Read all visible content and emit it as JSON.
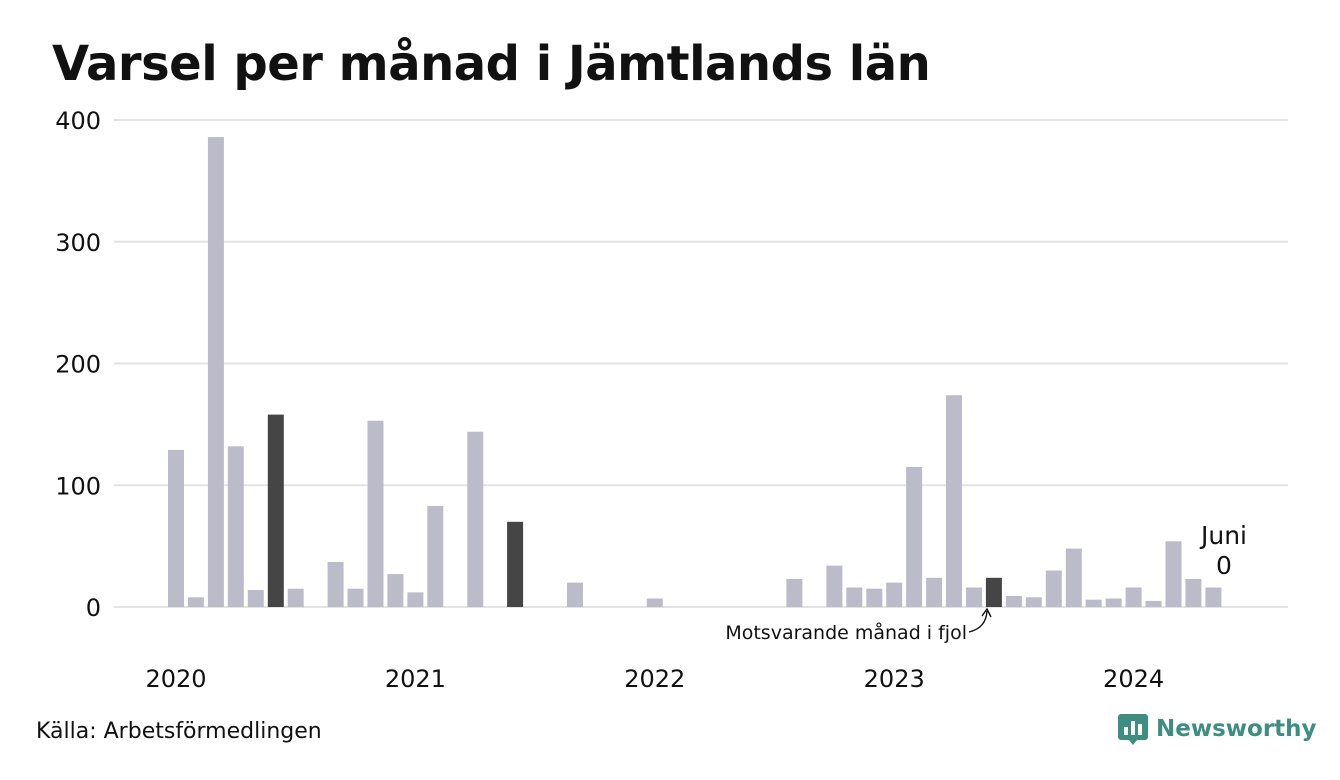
{
  "title": "Varsel per månad i Jämtlands län",
  "source": "Källa: Arbetsförmedlingen",
  "brand": {
    "name": "Newsworthy",
    "icon": "newsworthy-logo-icon",
    "color": "#3d8e80"
  },
  "colors": {
    "bar": "#bcbbc9",
    "highlight": "#454545",
    "grid": "#e3e3e3"
  },
  "chart_data": {
    "type": "bar",
    "title": "Varsel per månad i Jämtlands län",
    "xlabel": "",
    "ylabel": "",
    "ylim": [
      0,
      400
    ],
    "yticks": [
      0,
      100,
      200,
      300,
      400
    ],
    "grid": true,
    "year_labels": [
      "2020",
      "2021",
      "2022",
      "2023",
      "2024"
    ],
    "categories": [
      "2020-01",
      "2020-02",
      "2020-03",
      "2020-04",
      "2020-05",
      "2020-06",
      "2020-07",
      "2020-08",
      "2020-09",
      "2020-10",
      "2020-11",
      "2020-12",
      "2021-01",
      "2021-02",
      "2021-03",
      "2021-04",
      "2021-05",
      "2021-06",
      "2021-07",
      "2021-08",
      "2021-09",
      "2021-10",
      "2021-11",
      "2021-12",
      "2022-01",
      "2022-02",
      "2022-03",
      "2022-04",
      "2022-05",
      "2022-06",
      "2022-07",
      "2022-08",
      "2022-09",
      "2022-10",
      "2022-11",
      "2022-12",
      "2023-01",
      "2023-02",
      "2023-03",
      "2023-04",
      "2023-05",
      "2023-06",
      "2023-07",
      "2023-08",
      "2023-09",
      "2023-10",
      "2023-11",
      "2023-12",
      "2024-01",
      "2024-02",
      "2024-03",
      "2024-04",
      "2024-05",
      "2024-06"
    ],
    "values": [
      129,
      8,
      386,
      132,
      14,
      158,
      15,
      0,
      37,
      15,
      153,
      27,
      12,
      83,
      0,
      144,
      0,
      70,
      0,
      0,
      20,
      0,
      0,
      0,
      7,
      0,
      0,
      0,
      0,
      0,
      0,
      23,
      0,
      34,
      16,
      15,
      20,
      115,
      24,
      174,
      16,
      24,
      9,
      8,
      30,
      48,
      6,
      7,
      16,
      5,
      54,
      23,
      16,
      0
    ],
    "highlighted": [
      "2020-06",
      "2021-06",
      "2023-06"
    ],
    "annotations": {
      "current_month": "Juni",
      "current_value": "0",
      "previous_year_label": "Motsvarande månad i fjol"
    }
  }
}
